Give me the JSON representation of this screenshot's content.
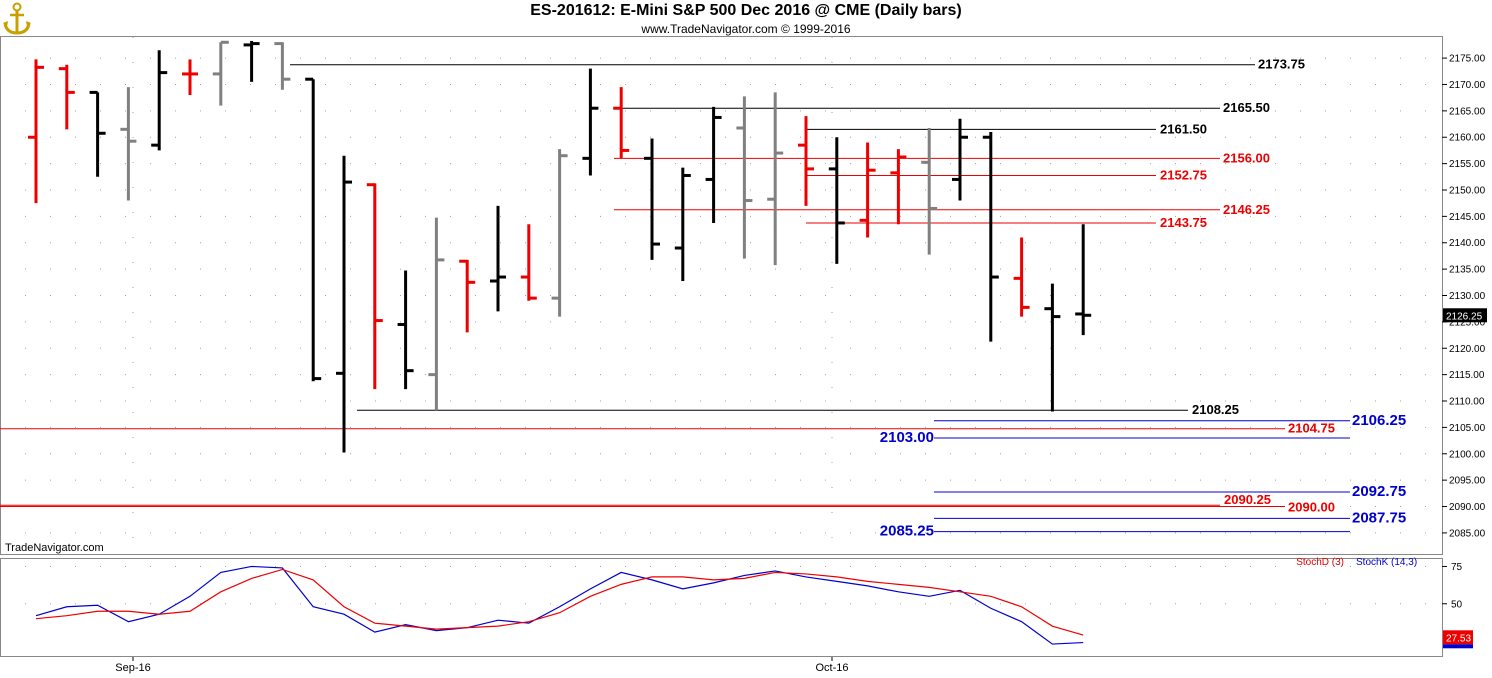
{
  "header": {
    "title": "ES-201612:  E-Mini S&P 500 Dec 2016 @ CME  (Daily bars)",
    "subtitle": "www.TradeNavigator.com © 1999-2016",
    "logo": "anchor-logo-icon"
  },
  "watermark": "TradeNavigator.com",
  "price_axis": {
    "ticks": [
      "2175.00",
      "2170.00",
      "2165.00",
      "2160.00",
      "2155.00",
      "2150.00",
      "2145.00",
      "2140.00",
      "2135.00",
      "2130.00",
      "2125.00",
      "2120.00",
      "2115.00",
      "2110.00",
      "2105.00",
      "2100.00",
      "2095.00",
      "2090.00",
      "2085.00"
    ],
    "last_price": "2126.25"
  },
  "osc_axis": {
    "ticks": [
      "75",
      "50"
    ],
    "last_value": "27.53",
    "legend": [
      {
        "label": "StochD (3)",
        "color": "#e00000"
      },
      {
        "label": "StochK (14,3)",
        "color": "#0000cc"
      }
    ]
  },
  "date_axis": {
    "labels": [
      "Sep-16",
      "Oct-16"
    ]
  },
  "colors": {
    "up": "#000000",
    "down": "#ee0000",
    "neutral": "#808080",
    "level_blue": "#0000cc",
    "level_red": "#ee0000",
    "grid": "#a0a0a0"
  },
  "chart_data": [
    {
      "type": "ohlc",
      "title": "ES-201612:  E-Mini S&P 500 Dec 2016 @ CME  (Daily bars)",
      "ylim": [
        2081,
        2179
      ],
      "bars": [
        {
          "o": 2160.0,
          "h": 2174.75,
          "l": 2147.5,
          "c": 2173.25,
          "col": "red"
        },
        {
          "o": 2173.0,
          "h": 2173.75,
          "l": 2161.5,
          "c": 2168.5,
          "col": "red"
        },
        {
          "o": 2168.5,
          "h": 2168.5,
          "l": 2152.5,
          "c": 2160.75,
          "col": "black"
        },
        {
          "o": 2161.5,
          "h": 2169.5,
          "l": 2148.0,
          "c": 2159.25,
          "col": "gray"
        },
        {
          "o": 2158.5,
          "h": 2176.5,
          "l": 2157.5,
          "c": 2172.25,
          "col": "black"
        },
        {
          "o": 2172.0,
          "h": 2174.75,
          "l": 2168.0,
          "c": 2172.0,
          "col": "red"
        },
        {
          "o": 2172.0,
          "h": 2178.0,
          "l": 2166.0,
          "c": 2178.0,
          "col": "gray"
        },
        {
          "o": 2177.5,
          "h": 2178.25,
          "l": 2170.5,
          "c": 2177.75,
          "col": "black"
        },
        {
          "o": 2177.75,
          "h": 2178.0,
          "l": 2169.0,
          "c": 2171.0,
          "col": "gray"
        },
        {
          "o": 2171.0,
          "h": 2171.0,
          "l": 2113.75,
          "c": 2114.25,
          "col": "black"
        },
        {
          "o": 2115.25,
          "h": 2156.5,
          "l": 2100.25,
          "c": 2151.5,
          "col": "black"
        },
        {
          "o": 2151.0,
          "h": 2151.25,
          "l": 2112.25,
          "c": 2125.25,
          "col": "red"
        },
        {
          "o": 2124.5,
          "h": 2134.75,
          "l": 2112.25,
          "c": 2115.75,
          "col": "black"
        },
        {
          "o": 2115.0,
          "h": 2144.75,
          "l": 2108.25,
          "c": 2136.75,
          "col": "gray"
        },
        {
          "o": 2136.5,
          "h": 2136.75,
          "l": 2123.0,
          "c": 2132.5,
          "col": "red"
        },
        {
          "o": 2132.75,
          "h": 2147.0,
          "l": 2127.0,
          "c": 2133.5,
          "col": "black"
        },
        {
          "o": 2133.5,
          "h": 2143.5,
          "l": 2129.0,
          "c": 2129.5,
          "col": "red"
        },
        {
          "o": 2129.5,
          "h": 2157.75,
          "l": 2126.0,
          "c": 2156.5,
          "col": "gray"
        },
        {
          "o": 2156.0,
          "h": 2173.0,
          "l": 2152.75,
          "c": 2165.5,
          "col": "black"
        },
        {
          "o": 2165.5,
          "h": 2169.5,
          "l": 2156.0,
          "c": 2157.5,
          "col": "red"
        },
        {
          "o": 2156.0,
          "h": 2159.75,
          "l": 2136.75,
          "c": 2139.75,
          "col": "black"
        },
        {
          "o": 2139.0,
          "h": 2154.25,
          "l": 2132.75,
          "c": 2152.75,
          "col": "black"
        },
        {
          "o": 2152.0,
          "h": 2165.75,
          "l": 2143.75,
          "c": 2163.75,
          "col": "black"
        },
        {
          "o": 2161.75,
          "h": 2167.75,
          "l": 2137.0,
          "c": 2148.0,
          "col": "gray"
        },
        {
          "o": 2148.25,
          "h": 2168.5,
          "l": 2135.75,
          "c": 2157.0,
          "col": "gray"
        },
        {
          "o": 2158.5,
          "h": 2164.0,
          "l": 2147.0,
          "c": 2154.0,
          "col": "red"
        },
        {
          "o": 2154.0,
          "h": 2160.0,
          "l": 2136.0,
          "c": 2143.75,
          "col": "black"
        },
        {
          "o": 2144.25,
          "h": 2159.0,
          "l": 2141.0,
          "c": 2153.75,
          "col": "red"
        },
        {
          "o": 2153.25,
          "h": 2157.75,
          "l": 2143.5,
          "c": 2156.25,
          "col": "red"
        },
        {
          "o": 2155.25,
          "h": 2161.75,
          "l": 2137.75,
          "c": 2146.5,
          "col": "gray"
        },
        {
          "o": 2152.0,
          "h": 2163.5,
          "l": 2148.0,
          "c": 2160.0,
          "col": "black"
        },
        {
          "o": 2160.0,
          "h": 2161.0,
          "l": 2121.25,
          "c": 2133.5,
          "col": "black"
        },
        {
          "o": 2133.25,
          "h": 2141.0,
          "l": 2126.0,
          "c": 2127.75,
          "col": "red"
        },
        {
          "o": 2127.5,
          "h": 2132.25,
          "l": 2108.0,
          "c": 2126.0,
          "col": "black"
        },
        {
          "o": 2126.5,
          "h": 2143.5,
          "l": 2122.5,
          "c": 2126.25,
          "col": "black"
        }
      ],
      "levels": [
        {
          "price": 2173.75,
          "label": "2173.75",
          "color": "black"
        },
        {
          "price": 2165.5,
          "label": "2165.50",
          "color": "black"
        },
        {
          "price": 2161.5,
          "label": "2161.50",
          "color": "black"
        },
        {
          "price": 2156.0,
          "label": "2156.00",
          "color": "red"
        },
        {
          "price": 2152.75,
          "label": "2152.75",
          "color": "red"
        },
        {
          "price": 2146.25,
          "label": "2146.25",
          "color": "red"
        },
        {
          "price": 2143.75,
          "label": "2143.75",
          "color": "red"
        },
        {
          "price": 2108.25,
          "label": "2108.25",
          "color": "black"
        },
        {
          "price": 2106.25,
          "label": "2106.25",
          "color": "blue"
        },
        {
          "price": 2104.75,
          "label": "2104.75",
          "color": "red"
        },
        {
          "price": 2103.0,
          "label": "2103.00",
          "color": "blue"
        },
        {
          "price": 2092.75,
          "label": "2092.75",
          "color": "blue"
        },
        {
          "price": 2090.25,
          "label": "2090.25",
          "color": "red"
        },
        {
          "price": 2090.0,
          "label": "2090.00",
          "color": "red"
        },
        {
          "price": 2087.75,
          "label": "2087.75",
          "color": "blue"
        },
        {
          "price": 2085.25,
          "label": "2085.25",
          "color": "blue"
        }
      ]
    },
    {
      "type": "line",
      "title": "",
      "ylim": [
        15,
        80
      ],
      "series": [
        {
          "name": "StochK (14,3)",
          "values": [
            42,
            48,
            49,
            38,
            43,
            55,
            71,
            75,
            74,
            48,
            43,
            31,
            36,
            32,
            34,
            39,
            37,
            48,
            60,
            71,
            66,
            60,
            64,
            69,
            72,
            68,
            65,
            62,
            58,
            55,
            59,
            47,
            38,
            23,
            24
          ]
        },
        {
          "name": "StochD (3)",
          "values": [
            40,
            42,
            45,
            45,
            43,
            45,
            58,
            67,
            73,
            66,
            48,
            37,
            35,
            33,
            34,
            35,
            38,
            44,
            55,
            63,
            68,
            68,
            66,
            67,
            71,
            70,
            68,
            65,
            63,
            61,
            58,
            55,
            48,
            35,
            29
          ]
        }
      ]
    }
  ]
}
